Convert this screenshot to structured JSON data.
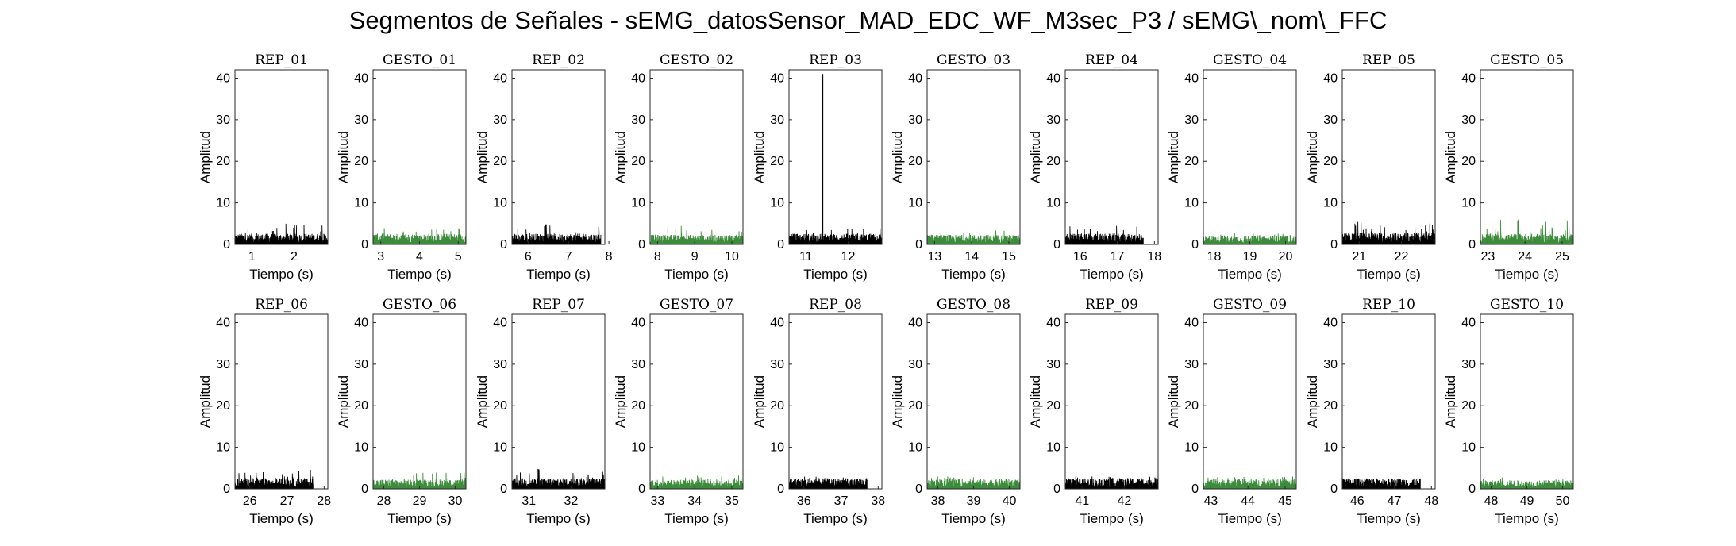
{
  "figure": {
    "title": "Segmentos de Señales - sEMG_datosSensor_MAD_EDC_WF_M3sec_P3 / sEMG\\_nom\\_FFC"
  },
  "colors": {
    "rep": "#000000",
    "gesto": "#3c8c3c",
    "axis": "#000000"
  },
  "chart_data": [
    {
      "type": "line",
      "title": "REP_01",
      "xlabel": "Tiempo (s)",
      "ylabel": "Amplitud",
      "xlim": [
        0.6,
        2.8
      ],
      "ylim": [
        0,
        42
      ],
      "xticks": [
        1,
        2
      ],
      "yticks": [
        0,
        10,
        20,
        30,
        40
      ],
      "series": [
        {
          "x_range": [
            0.6,
            2.8
          ],
          "baseline": 2.0,
          "peak": 5.0,
          "kind": "rep"
        }
      ]
    },
    {
      "type": "line",
      "title": "GESTO_01",
      "xlabel": "Tiempo (s)",
      "ylabel": "Amplitud",
      "xlim": [
        2.8,
        5.2
      ],
      "ylim": [
        0,
        42
      ],
      "xticks": [
        3,
        4,
        5
      ],
      "yticks": [
        0,
        10,
        20,
        30,
        40
      ],
      "series": [
        {
          "x_range": [
            2.8,
            5.2
          ],
          "baseline": 2.0,
          "peak": 4.0,
          "kind": "gesto"
        }
      ]
    },
    {
      "type": "line",
      "title": "REP_02",
      "xlabel": "Tiempo (s)",
      "ylabel": "Amplitud",
      "xlim": [
        5.6,
        7.9
      ],
      "ylim": [
        0,
        42
      ],
      "xticks": [
        6,
        7,
        8
      ],
      "yticks": [
        0,
        10,
        20,
        30,
        40
      ],
      "series": [
        {
          "x_range": [
            5.6,
            7.8
          ],
          "baseline": 2.0,
          "peak": 5.0,
          "kind": "rep"
        }
      ]
    },
    {
      "type": "line",
      "title": "GESTO_02",
      "xlabel": "Tiempo (s)",
      "ylabel": "Amplitud",
      "xlim": [
        7.8,
        10.3
      ],
      "ylim": [
        0,
        42
      ],
      "xticks": [
        8,
        9,
        10
      ],
      "yticks": [
        0,
        10,
        20,
        30,
        40
      ],
      "series": [
        {
          "x_range": [
            7.8,
            10.3
          ],
          "baseline": 1.8,
          "peak": 4.5,
          "kind": "gesto"
        }
      ]
    },
    {
      "type": "line",
      "title": "REP_03",
      "xlabel": "Tiempo (s)",
      "ylabel": "Amplitud",
      "xlim": [
        10.6,
        12.8
      ],
      "ylim": [
        0,
        42
      ],
      "xticks": [
        11,
        12
      ],
      "yticks": [
        0,
        10,
        20,
        30,
        40
      ],
      "series": [
        {
          "x_range": [
            10.6,
            12.8
          ],
          "baseline": 2.0,
          "peak": 4.0,
          "spike": {
            "x": 11.4,
            "y": 41
          },
          "kind": "rep"
        }
      ]
    },
    {
      "type": "line",
      "title": "GESTO_03",
      "xlabel": "Tiempo (s)",
      "ylabel": "Amplitud",
      "xlim": [
        12.8,
        15.3
      ],
      "ylim": [
        0,
        42
      ],
      "xticks": [
        13,
        14,
        15
      ],
      "yticks": [
        0,
        10,
        20,
        30,
        40
      ],
      "series": [
        {
          "x_range": [
            12.8,
            15.3
          ],
          "baseline": 1.8,
          "peak": 3.5,
          "kind": "gesto"
        }
      ]
    },
    {
      "type": "line",
      "title": "REP_04",
      "xlabel": "Tiempo (s)",
      "ylabel": "Amplitud",
      "xlim": [
        15.6,
        18.1
      ],
      "ylim": [
        0,
        42
      ],
      "xticks": [
        16,
        17,
        18
      ],
      "yticks": [
        0,
        10,
        20,
        30,
        40
      ],
      "series": [
        {
          "x_range": [
            15.6,
            17.7
          ],
          "baseline": 2.0,
          "peak": 4.5,
          "kind": "rep"
        }
      ]
    },
    {
      "type": "line",
      "title": "GESTO_04",
      "xlabel": "Tiempo (s)",
      "ylabel": "Amplitud",
      "xlim": [
        17.7,
        20.3
      ],
      "ylim": [
        0,
        42
      ],
      "xticks": [
        18,
        19,
        20
      ],
      "yticks": [
        0,
        10,
        20,
        30,
        40
      ],
      "series": [
        {
          "x_range": [
            17.7,
            20.3
          ],
          "baseline": 1.6,
          "peak": 3.0,
          "kind": "gesto"
        }
      ]
    },
    {
      "type": "line",
      "title": "REP_05",
      "xlabel": "Tiempo (s)",
      "ylabel": "Amplitud",
      "xlim": [
        20.6,
        22.8
      ],
      "ylim": [
        0,
        42
      ],
      "xticks": [
        21,
        22
      ],
      "yticks": [
        0,
        10,
        20,
        30,
        40
      ],
      "series": [
        {
          "x_range": [
            20.6,
            22.8
          ],
          "baseline": 2.2,
          "peak": 5.5,
          "kind": "rep"
        }
      ]
    },
    {
      "type": "line",
      "title": "GESTO_05",
      "xlabel": "Tiempo (s)",
      "ylabel": "Amplitud",
      "xlim": [
        22.8,
        25.3
      ],
      "ylim": [
        0,
        42
      ],
      "xticks": [
        23,
        24,
        25
      ],
      "yticks": [
        0,
        10,
        20,
        30,
        40
      ],
      "series": [
        {
          "x_range": [
            22.8,
            25.3
          ],
          "baseline": 2.0,
          "peak": 6.0,
          "kind": "gesto"
        }
      ]
    },
    {
      "type": "line",
      "title": "REP_06",
      "xlabel": "Tiempo (s)",
      "ylabel": "Amplitud",
      "xlim": [
        25.6,
        28.1
      ],
      "ylim": [
        0,
        42
      ],
      "xticks": [
        26,
        27,
        28
      ],
      "yticks": [
        0,
        10,
        20,
        30,
        40
      ],
      "series": [
        {
          "x_range": [
            25.6,
            27.7
          ],
          "baseline": 2.0,
          "peak": 5.0,
          "kind": "rep"
        }
      ]
    },
    {
      "type": "line",
      "title": "GESTO_06",
      "xlabel": "Tiempo (s)",
      "ylabel": "Amplitud",
      "xlim": [
        27.7,
        30.3
      ],
      "ylim": [
        0,
        42
      ],
      "xticks": [
        28,
        29,
        30
      ],
      "yticks": [
        0,
        10,
        20,
        30,
        40
      ],
      "series": [
        {
          "x_range": [
            27.7,
            30.3
          ],
          "baseline": 1.8,
          "peak": 4.0,
          "kind": "gesto"
        }
      ]
    },
    {
      "type": "line",
      "title": "REP_07",
      "xlabel": "Tiempo (s)",
      "ylabel": "Amplitud",
      "xlim": [
        30.6,
        32.8
      ],
      "ylim": [
        0,
        42
      ],
      "xticks": [
        31,
        32
      ],
      "yticks": [
        0,
        10,
        20,
        30,
        40
      ],
      "series": [
        {
          "x_range": [
            30.6,
            32.8
          ],
          "baseline": 2.0,
          "peak": 5.0,
          "kind": "rep"
        }
      ]
    },
    {
      "type": "line",
      "title": "GESTO_07",
      "xlabel": "Tiempo (s)",
      "ylabel": "Amplitud",
      "xlim": [
        32.8,
        35.3
      ],
      "ylim": [
        0,
        42
      ],
      "xticks": [
        33,
        34,
        35
      ],
      "yticks": [
        0,
        10,
        20,
        30,
        40
      ],
      "series": [
        {
          "x_range": [
            32.8,
            35.3
          ],
          "baseline": 1.8,
          "peak": 3.5,
          "kind": "gesto"
        }
      ]
    },
    {
      "type": "line",
      "title": "REP_08",
      "xlabel": "Tiempo (s)",
      "ylabel": "Amplitud",
      "xlim": [
        35.6,
        38.1
      ],
      "ylim": [
        0,
        42
      ],
      "xticks": [
        36,
        37,
        38
      ],
      "yticks": [
        0,
        10,
        20,
        30,
        40
      ],
      "series": [
        {
          "x_range": [
            35.6,
            37.7
          ],
          "baseline": 2.0,
          "peak": 3.0,
          "kind": "rep"
        }
      ]
    },
    {
      "type": "line",
      "title": "GESTO_08",
      "xlabel": "Tiempo (s)",
      "ylabel": "Amplitud",
      "xlim": [
        37.7,
        40.3
      ],
      "ylim": [
        0,
        42
      ],
      "xticks": [
        38,
        39,
        40
      ],
      "yticks": [
        0,
        10,
        20,
        30,
        40
      ],
      "series": [
        {
          "x_range": [
            37.7,
            40.3
          ],
          "baseline": 1.8,
          "peak": 3.0,
          "kind": "gesto"
        }
      ]
    },
    {
      "type": "line",
      "title": "REP_09",
      "xlabel": "Tiempo (s)",
      "ylabel": "Amplitud",
      "xlim": [
        40.6,
        42.8
      ],
      "ylim": [
        0,
        42
      ],
      "xticks": [
        41,
        42
      ],
      "yticks": [
        0,
        10,
        20,
        30,
        40
      ],
      "series": [
        {
          "x_range": [
            40.6,
            42.8
          ],
          "baseline": 2.0,
          "peak": 3.0,
          "kind": "rep"
        }
      ]
    },
    {
      "type": "line",
      "title": "GESTO_09",
      "xlabel": "Tiempo (s)",
      "ylabel": "Amplitud",
      "xlim": [
        42.8,
        45.3
      ],
      "ylim": [
        0,
        42
      ],
      "xticks": [
        43,
        44,
        45
      ],
      "yticks": [
        0,
        10,
        20,
        30,
        40
      ],
      "series": [
        {
          "x_range": [
            42.8,
            45.3
          ],
          "baseline": 1.8,
          "peak": 3.0,
          "kind": "gesto"
        }
      ]
    },
    {
      "type": "line",
      "title": "REP_10",
      "xlabel": "Tiempo (s)",
      "ylabel": "Amplitud",
      "xlim": [
        45.6,
        48.1
      ],
      "ylim": [
        0,
        42
      ],
      "xticks": [
        46,
        47,
        48
      ],
      "yticks": [
        0,
        10,
        20,
        30,
        40
      ],
      "series": [
        {
          "x_range": [
            45.6,
            47.7
          ],
          "baseline": 2.0,
          "peak": 2.5,
          "kind": "rep"
        }
      ]
    },
    {
      "type": "line",
      "title": "GESTO_10",
      "xlabel": "Tiempo (s)",
      "ylabel": "Amplitud",
      "xlim": [
        47.7,
        50.3
      ],
      "ylim": [
        0,
        42
      ],
      "xticks": [
        48,
        49,
        50
      ],
      "yticks": [
        0,
        10,
        20,
        30,
        40
      ],
      "series": [
        {
          "x_range": [
            47.7,
            50.3
          ],
          "baseline": 1.6,
          "peak": 2.8,
          "kind": "gesto"
        }
      ]
    }
  ]
}
